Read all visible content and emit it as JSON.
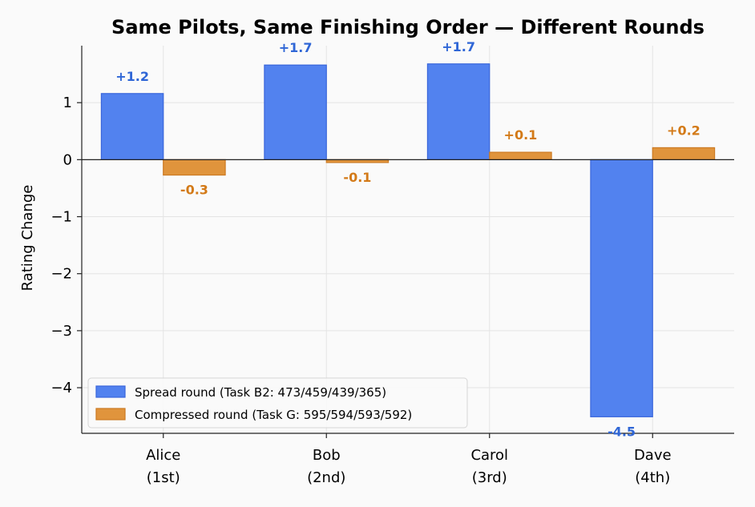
{
  "chart_data": {
    "type": "bar",
    "title": "Same Pilots, Same Finishing Order — Different Rounds",
    "xlabel": "",
    "ylabel": "Rating Change",
    "categories": [
      [
        "Alice",
        "(1st)"
      ],
      [
        "Bob",
        "(2nd)"
      ],
      [
        "Carol",
        "(3rd)"
      ],
      [
        "Dave",
        "(4th)"
      ]
    ],
    "ylim": [
      -4.8,
      2.0
    ],
    "yticks": [
      {
        "value": 1,
        "label": "1"
      },
      {
        "value": 0,
        "label": "0"
      },
      {
        "value": -1,
        "label": "−1"
      },
      {
        "value": -2,
        "label": "−2"
      },
      {
        "value": -3,
        "label": "−3"
      },
      {
        "value": -4,
        "label": "−4"
      }
    ],
    "grid": true,
    "legend_position": "bottom-left",
    "series": [
      {
        "name": "Spread round (Task B2: 473/459/439/365)",
        "values": [
          1.16,
          1.66,
          1.68,
          -4.51
        ],
        "labels": [
          "+1.2",
          "+1.7",
          "+1.7",
          "-4.5"
        ],
        "color": "#5282ef",
        "edge_color": "#3a66db",
        "label_color": "#2f66d6"
      },
      {
        "name": "Compressed round (Task G: 595/594/593/592)",
        "values": [
          -0.27,
          -0.05,
          0.13,
          0.21
        ],
        "labels": [
          "-0.3",
          "-0.1",
          "+0.1",
          "+0.2"
        ],
        "color": "#e0943c",
        "edge_color": "#cc7a22",
        "label_color": "#d37a18"
      }
    ]
  }
}
